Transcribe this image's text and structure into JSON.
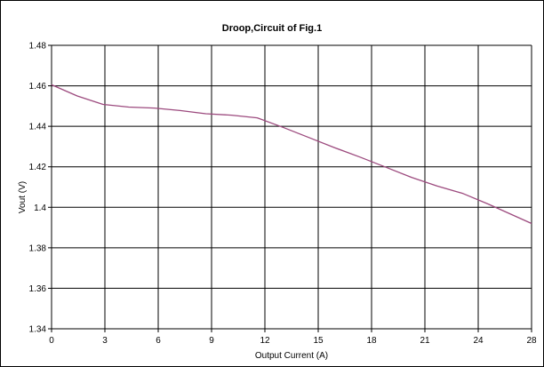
{
  "chart_data": {
    "type": "line",
    "title": "Droop,Circuit of Fig.1",
    "xlabel": "Output Current (A)",
    "ylabel": "Vout (V)",
    "xlim": [
      0,
      28
    ],
    "ylim": [
      1.34,
      1.48
    ],
    "x_ticks": [
      "0",
      "3",
      "6",
      "9",
      "12",
      "15",
      "18",
      "21",
      "24",
      "28"
    ],
    "y_ticks": [
      "1.34",
      "1.36",
      "1.38",
      "1.4",
      "1.42",
      "1.44",
      "1.46",
      "1.48"
    ],
    "grid": true,
    "legend": "none",
    "series": [
      {
        "color": "#9c4a7e",
        "x": [
          0,
          1.5,
          3,
          4.5,
          6,
          7.5,
          9,
          10.5,
          12,
          13.5,
          15,
          16.5,
          18,
          19.5,
          21,
          22.5,
          24,
          25.5,
          28
        ],
        "y": [
          1.4605,
          1.455,
          1.4508,
          1.4495,
          1.449,
          1.4478,
          1.4462,
          1.4455,
          1.4442,
          1.4395,
          1.4345,
          1.4295,
          1.4248,
          1.4198,
          1.4148,
          1.4105,
          1.4068,
          1.4015,
          1.392
        ]
      }
    ]
  }
}
